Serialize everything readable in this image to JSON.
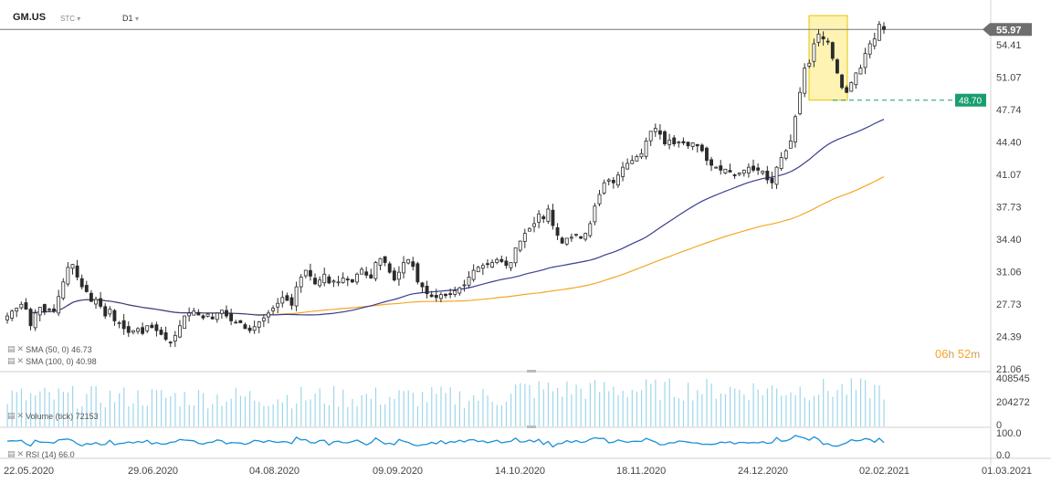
{
  "header": {
    "symbol": "GM.US",
    "instrument_type": "STC",
    "interval": "D1",
    "dropdown_icon": "chevron-down-icon"
  },
  "price_chart": {
    "last_price": "55.97",
    "level_line_value": "48.70",
    "y_ticks": [
      "54.41",
      "51.07",
      "47.74",
      "44.40",
      "41.07",
      "37.73",
      "34.40",
      "31.06",
      "27.73",
      "24.39",
      "21.06"
    ],
    "countdown_hours": "06",
    "countdown_h_unit": "h",
    "countdown_minutes": "52",
    "countdown_m_unit": "m"
  },
  "indicators": {
    "sma50": {
      "label": "SMA (50, 0) 46.73",
      "color": "#3a3f8f"
    },
    "sma100": {
      "label": "SMA (100, 0) 40.98",
      "color": "#f5a623"
    },
    "volume": {
      "label": "Volume (tick) 72153",
      "ticks": [
        "408545",
        "204272",
        "0"
      ],
      "color": "#9fd6ea"
    },
    "rsi": {
      "label": "RSI (14) 66.0",
      "ticks": [
        "100.0",
        "0.0"
      ],
      "color": "#1a8fd8"
    }
  },
  "x_axis": {
    "labels": [
      "22.05.2020",
      "29.06.2020",
      "04.08.2020",
      "09.09.2020",
      "14.10.2020",
      "18.11.2020",
      "24.12.2020",
      "02.02.2021",
      "01.03.2021"
    ]
  },
  "colors": {
    "candle": "#2b2b2b",
    "level_line": "#1a9e6e",
    "highlight": "#ffef9a",
    "price_label": "#6e6e6e"
  },
  "chart_data": {
    "type": "candlestick",
    "symbol": "GM.US",
    "timeframe": "D1",
    "ylim": [
      21.06,
      57.5
    ],
    "closes_approx": [
      26.5,
      27.0,
      27.3,
      27.7,
      27.2,
      25.5,
      26.8,
      27.4,
      26.9,
      27.2,
      27.0,
      28.5,
      30.0,
      31.5,
      31.8,
      30.5,
      29.5,
      29.0,
      28.0,
      28.2,
      27.5,
      26.5,
      27.2,
      26.0,
      25.8,
      25.2,
      24.8,
      25.0,
      25.2,
      24.7,
      25.5,
      25.3,
      25.0,
      24.6,
      24.1,
      23.8,
      24.5,
      25.5,
      26.5,
      26.8,
      27.0,
      26.6,
      26.3,
      26.7,
      26.2,
      26.8,
      27.1,
      26.5,
      26.0,
      25.8,
      25.8,
      25.2,
      25.0,
      25.4,
      25.9,
      26.3,
      26.8,
      27.3,
      27.8,
      28.4,
      28.1,
      27.6,
      29.5,
      30.5,
      31.2,
      30.6,
      29.8,
      30.2,
      30.8,
      29.9,
      30.1,
      30.0,
      30.4,
      30.2,
      30.0,
      30.8,
      31.3,
      30.7,
      30.4,
      32.0,
      32.4,
      32.0,
      31.0,
      30.2,
      31.0,
      32.0,
      32.3,
      31.6,
      30.0,
      29.5,
      28.8,
      28.5,
      28.4,
      28.7,
      28.6,
      28.7,
      29.1,
      29.4,
      29.7,
      30.5,
      31.2,
      31.5,
      31.7,
      31.8,
      32.0,
      32.3,
      32.1,
      31.7,
      32.0,
      33.5,
      34.2,
      35.0,
      35.5,
      36.0,
      37.0,
      36.5,
      37.5,
      35.8,
      34.8,
      34.0,
      34.5,
      34.6,
      34.9,
      34.5,
      35.0,
      36.0,
      37.8,
      39.0,
      40.2,
      40.5,
      40.2,
      41.0,
      41.8,
      42.2,
      42.5,
      42.9,
      43.2,
      44.5,
      45.5,
      45.8,
      45.2,
      44.2,
      44.6,
      44.2,
      44.4,
      44.3,
      44.0,
      44.3,
      44.0,
      43.5,
      42.5,
      42.0,
      41.8,
      41.5,
      41.6,
      41.3,
      41.0,
      41.2,
      41.5,
      41.8,
      41.5,
      41.5,
      41.4,
      40.5,
      40.2,
      41.8,
      42.8,
      43.5,
      44.5,
      47.0,
      49.5,
      52.0,
      52.5,
      54.5,
      55.5,
      55.0,
      54.7,
      53.0,
      51.5,
      50.0,
      49.5,
      50.5,
      51.5,
      52.0,
      53.5,
      54.5,
      55.0,
      56.5,
      55.97
    ]
  }
}
